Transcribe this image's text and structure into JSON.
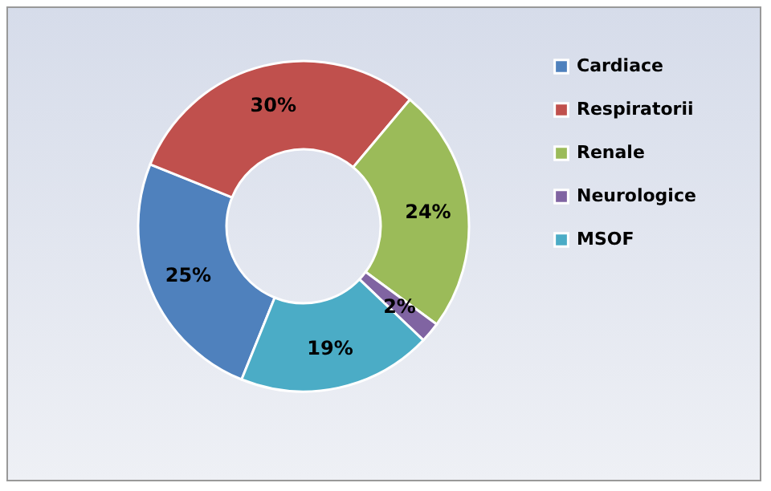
{
  "chart_data": {
    "type": "donut",
    "categories": [
      "Cardiace",
      "Respiratorii",
      "Renale",
      "Neurologice",
      "MSOF"
    ],
    "values": [
      25,
      30,
      24,
      2,
      19
    ],
    "colors": [
      "#4f81bd",
      "#c0504d",
      "#9bbb59",
      "#8064a2",
      "#4bacc6"
    ],
    "value_labels": [
      "25%",
      "30%",
      "24%",
      "2%",
      "19%"
    ],
    "legend": "right"
  }
}
